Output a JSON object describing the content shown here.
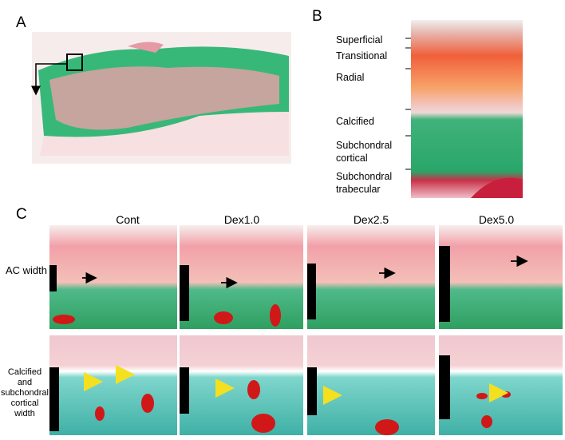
{
  "panel_labels": [
    "A",
    "B",
    "C"
  ],
  "layers": [
    "Superficial",
    "Transitional",
    "Radial",
    "Calcified",
    "Subchondral cortical",
    "Subchondral trabecular"
  ],
  "columns": [
    "Cont",
    "Dex1.0",
    "Dex2.5",
    "Dex5.0"
  ],
  "rows": [
    "AC width",
    "Calcified and subchondral cortical width"
  ]
}
